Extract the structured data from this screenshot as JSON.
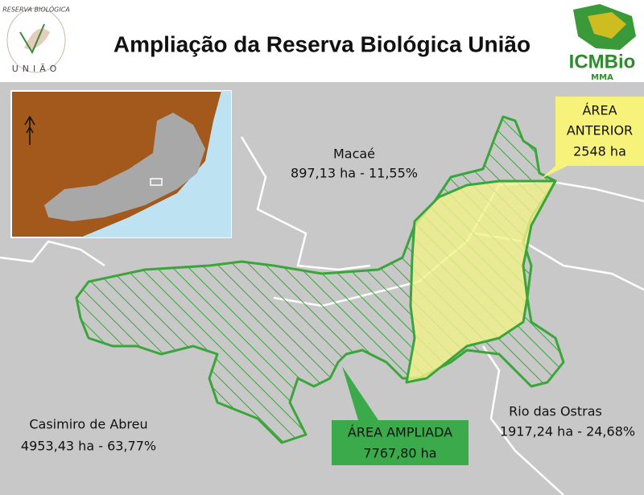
{
  "header": {
    "title": "Ampliação da Reserva Biológica União",
    "logo_left": {
      "top": "RESERVA BIOLÓGICA",
      "bottom": "UNIÃO"
    },
    "logo_right": {
      "name": "ICMBio",
      "sub": "MMA"
    }
  },
  "map": {
    "labels": [
      {
        "name": "Macaé",
        "area": "897,13 ha - 11,55%"
      },
      {
        "name": "Casimiro de Abreu",
        "area": "4953,43 ha - 63,77%"
      },
      {
        "name": "Rio das Ostras",
        "area": "1917,24 ha - 24,68%"
      }
    ]
  },
  "callouts": {
    "anterior": {
      "lines": [
        "ÁREA",
        "ANTERIOR",
        "2548 ha"
      ]
    },
    "ampliada": {
      "lines": [
        "ÁREA AMPLIADA",
        "7767,80 ha"
      ]
    }
  }
}
